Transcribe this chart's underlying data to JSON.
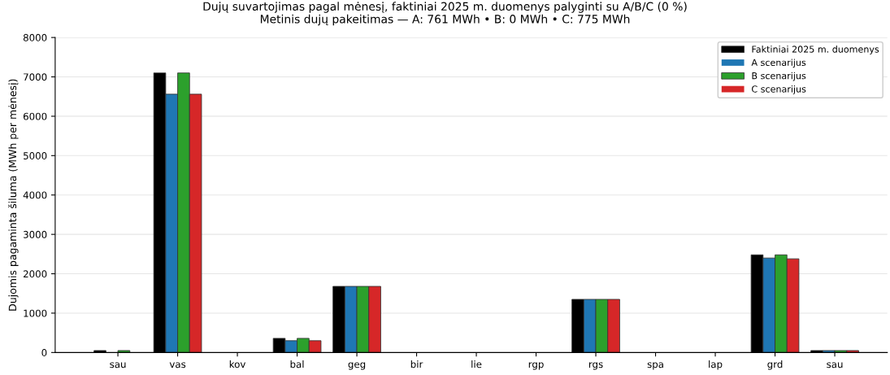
{
  "chart_data": {
    "type": "bar",
    "title": "Dujų suvartojimas pagal mėnesį, faktiniai 2025 m. duomenys palyginti su A/B/C (0 %)",
    "subtitle": "Metinis dujų pakeitimas — A: 761 MWh • B: 0 MWh • C: 775 MWh",
    "ylabel": "Dujomis pagaminta šiluma (MWh per mėnesį)",
    "categories": [
      "sau",
      "vas",
      "kov",
      "bal",
      "geg",
      "bir",
      "lie",
      "rgp",
      "rgs",
      "spa",
      "lap",
      "grd",
      "sau"
    ],
    "series": [
      {
        "name": "Faktiniai 2025 m. duomenys",
        "color": "#000000",
        "values": [
          50,
          7100,
          0,
          360,
          1680,
          0,
          0,
          0,
          1350,
          0,
          0,
          2480,
          50
        ]
      },
      {
        "name": "A scenarijus",
        "color": "#1f77b4",
        "values": [
          0,
          6560,
          0,
          300,
          1680,
          0,
          0,
          0,
          1350,
          0,
          0,
          2400,
          50
        ]
      },
      {
        "name": "B scenarijus",
        "color": "#2ca02c",
        "values": [
          50,
          7100,
          0,
          360,
          1680,
          0,
          0,
          0,
          1350,
          0,
          0,
          2480,
          50
        ]
      },
      {
        "name": "C scenarijus",
        "color": "#d62728",
        "values": [
          0,
          6560,
          0,
          300,
          1680,
          0,
          0,
          0,
          1350,
          0,
          0,
          2380,
          50
        ]
      }
    ],
    "ylim": [
      0,
      8000
    ],
    "yticks": [
      0,
      1000,
      2000,
      3000,
      4000,
      5000,
      6000,
      7000,
      8000
    ],
    "grid": "y",
    "legend": "top right"
  }
}
